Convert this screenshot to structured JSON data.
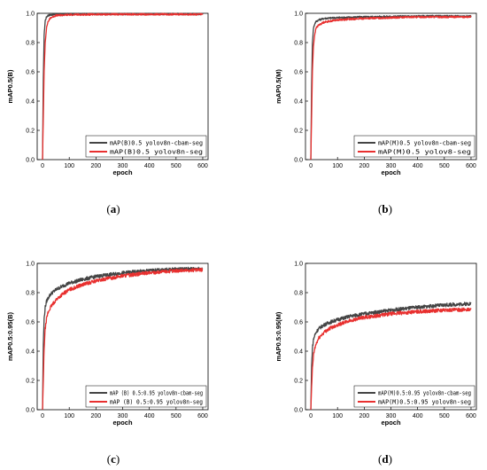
{
  "chart_data": [
    {
      "type": "line",
      "caption": "a",
      "xlabel": "epoch",
      "ylabel": "mAP0.5(B)",
      "xlim": [
        -20,
        620
      ],
      "ylim": [
        0,
        1.0
      ],
      "xticks": [
        0,
        100,
        200,
        300,
        400,
        500,
        600
      ],
      "yticks": [
        0.0,
        0.2,
        0.4,
        0.6,
        0.8,
        1.0
      ],
      "legend_position": "bottom-right",
      "series": [
        {
          "name": "mAP(B)0.5 yolov8n-cbam-seg",
          "color": "#444444",
          "x": [
            0,
            3,
            6,
            10,
            15,
            20,
            30,
            50,
            100,
            200,
            300,
            400,
            500,
            600
          ],
          "y": [
            0.0,
            0.55,
            0.85,
            0.95,
            0.975,
            0.985,
            0.99,
            0.993,
            0.995,
            0.995,
            0.995,
            0.995,
            0.995,
            0.995
          ]
        },
        {
          "name": "mAP(B)0.5 yolov8n-seg",
          "color": "#e8302f",
          "x": [
            0,
            3,
            6,
            10,
            15,
            20,
            30,
            50,
            100,
            200,
            300,
            400,
            500,
            600
          ],
          "y": [
            0.0,
            0.3,
            0.6,
            0.8,
            0.9,
            0.94,
            0.97,
            0.985,
            0.99,
            0.992,
            0.993,
            0.993,
            0.993,
            0.993
          ]
        }
      ]
    },
    {
      "type": "line",
      "caption": "b",
      "xlabel": "epoch",
      "ylabel": "mAP0.5(M)",
      "xlim": [
        -20,
        620
      ],
      "ylim": [
        0,
        1.0
      ],
      "xticks": [
        0,
        100,
        200,
        300,
        400,
        500,
        600
      ],
      "yticks": [
        0.0,
        0.2,
        0.4,
        0.6,
        0.8,
        1.0
      ],
      "legend_position": "bottom-right",
      "series": [
        {
          "name": "mAP(M)0.5 yolov8n-cbam-seg",
          "color": "#444444",
          "x": [
            0,
            3,
            6,
            10,
            15,
            20,
            30,
            50,
            100,
            200,
            300,
            400,
            500,
            600
          ],
          "y": [
            0.0,
            0.5,
            0.8,
            0.9,
            0.93,
            0.945,
            0.955,
            0.965,
            0.97,
            0.975,
            0.978,
            0.98,
            0.98,
            0.98
          ]
        },
        {
          "name": "mAP(M)0.5 yolov8-seg",
          "color": "#e8302f",
          "x": [
            0,
            3,
            6,
            10,
            15,
            20,
            30,
            50,
            100,
            200,
            300,
            400,
            500,
            600
          ],
          "y": [
            0.0,
            0.3,
            0.6,
            0.78,
            0.86,
            0.9,
            0.92,
            0.94,
            0.955,
            0.965,
            0.97,
            0.975,
            0.975,
            0.975
          ]
        }
      ]
    },
    {
      "type": "line",
      "caption": "c",
      "xlabel": "epoch",
      "ylabel": "mAP0.5:0.95(B)",
      "xlim": [
        -20,
        620
      ],
      "ylim": [
        0,
        1.0
      ],
      "xticks": [
        0,
        100,
        200,
        300,
        400,
        500,
        600
      ],
      "yticks": [
        0.0,
        0.2,
        0.4,
        0.6,
        0.8,
        1.0
      ],
      "legend_position": "bottom-right",
      "series": [
        {
          "name": "mAP (B) 0.5:0.95 yolov8n-cbam-seg",
          "color": "#444444",
          "x": [
            0,
            3,
            6,
            10,
            15,
            20,
            30,
            50,
            75,
            100,
            150,
            200,
            300,
            400,
            500,
            600
          ],
          "y": [
            0.0,
            0.45,
            0.62,
            0.7,
            0.74,
            0.76,
            0.79,
            0.82,
            0.845,
            0.865,
            0.89,
            0.91,
            0.935,
            0.95,
            0.96,
            0.965
          ]
        },
        {
          "name": "mAP (B) 0.5:0.95 yolov8n-seg",
          "color": "#e8302f",
          "x": [
            0,
            3,
            6,
            10,
            15,
            20,
            30,
            50,
            75,
            100,
            150,
            200,
            300,
            400,
            500,
            600
          ],
          "y": [
            0.0,
            0.2,
            0.42,
            0.55,
            0.62,
            0.66,
            0.7,
            0.75,
            0.79,
            0.82,
            0.855,
            0.88,
            0.915,
            0.935,
            0.95,
            0.955
          ]
        }
      ]
    },
    {
      "type": "line",
      "caption": "d",
      "xlabel": "epoch",
      "ylabel": "mAP0.5:0.95(M)",
      "xlim": [
        -20,
        620
      ],
      "ylim": [
        0,
        1.0
      ],
      "xticks": [
        0,
        100,
        200,
        300,
        400,
        500,
        600
      ],
      "yticks": [
        0.0,
        0.2,
        0.4,
        0.6,
        0.8,
        1.0
      ],
      "legend_position": "bottom-right",
      "series": [
        {
          "name": "mAP(M)0.5:0.95 yolov8n-cbam-seg",
          "color": "#444444",
          "x": [
            0,
            3,
            6,
            10,
            15,
            20,
            30,
            50,
            75,
            100,
            150,
            200,
            300,
            400,
            500,
            600
          ],
          "y": [
            0.0,
            0.3,
            0.42,
            0.48,
            0.51,
            0.53,
            0.555,
            0.58,
            0.6,
            0.615,
            0.64,
            0.655,
            0.68,
            0.7,
            0.715,
            0.725
          ]
        },
        {
          "name": "mAP(M)0.5:0.95 yolov8n-seg",
          "color": "#e8302f",
          "x": [
            0,
            3,
            6,
            10,
            15,
            20,
            30,
            50,
            75,
            100,
            150,
            200,
            300,
            400,
            500,
            600
          ],
          "y": [
            0.0,
            0.15,
            0.28,
            0.37,
            0.42,
            0.45,
            0.49,
            0.53,
            0.56,
            0.58,
            0.61,
            0.63,
            0.655,
            0.67,
            0.68,
            0.685
          ]
        }
      ]
    }
  ]
}
